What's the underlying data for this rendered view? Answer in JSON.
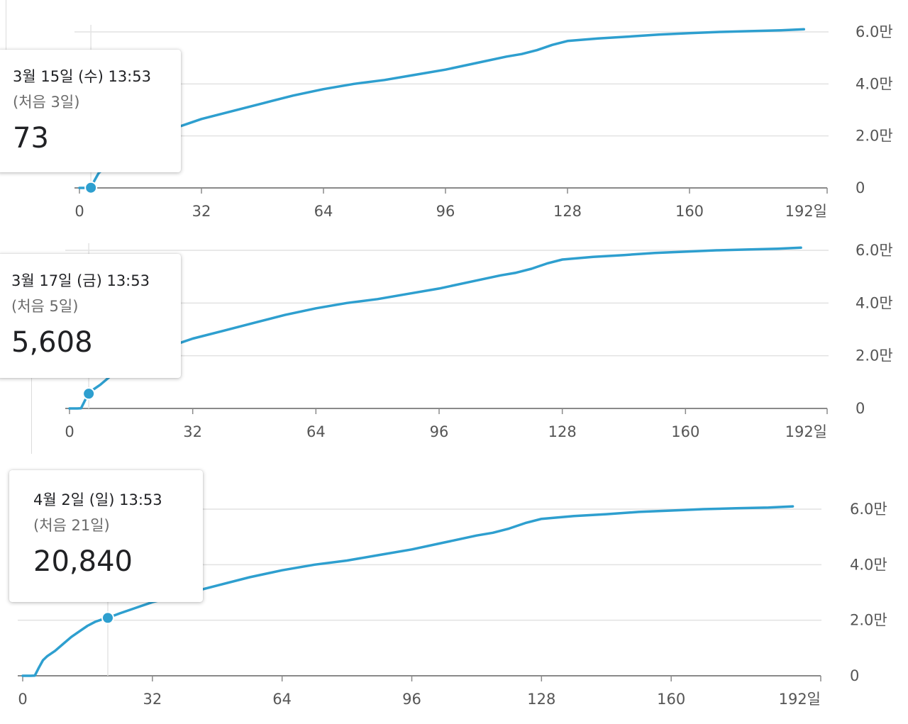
{
  "chart_data": [
    {
      "type": "line",
      "x_unit": "일",
      "x_ticks": [
        "0",
        "32",
        "64",
        "96",
        "128",
        "160",
        "192일"
      ],
      "y_ticks": [
        "0",
        "2.0만",
        "4.0만",
        "6.0만"
      ],
      "xlim": [
        0,
        192
      ],
      "ylim": [
        0,
        60000
      ],
      "grid": true,
      "color": "#2e9fcf",
      "x": [
        0,
        1,
        2,
        3,
        4,
        5,
        6,
        8,
        10,
        12,
        14,
        16,
        18,
        20,
        21,
        24,
        28,
        32,
        40,
        48,
        56,
        64,
        72,
        80,
        88,
        96,
        104,
        112,
        116,
        120,
        124,
        128,
        136,
        144,
        152,
        160,
        168,
        176,
        184,
        190
      ],
      "values": [
        0,
        0,
        0,
        73,
        3000,
        5608,
        7000,
        9000,
        11500,
        14000,
        16000,
        18000,
        19500,
        20500,
        20840,
        22500,
        24500,
        26500,
        29500,
        32500,
        35500,
        38000,
        40000,
        41500,
        43500,
        45500,
        48000,
        50500,
        51500,
        53000,
        55000,
        56500,
        57500,
        58200,
        59000,
        59500,
        60000,
        60300,
        60600,
        61000
      ],
      "tooltip": {
        "date": "3월 15일 (수) 13:53",
        "sub": "(처음 3일)",
        "value": "73"
      },
      "highlight": {
        "x": 3,
        "y": 73
      }
    },
    {
      "type": "line",
      "x_unit": "일",
      "x_ticks": [
        "0",
        "32",
        "64",
        "96",
        "128",
        "160",
        "192일"
      ],
      "y_ticks": [
        "0",
        "2.0만",
        "4.0만",
        "6.0만"
      ],
      "xlim": [
        0,
        192
      ],
      "ylim": [
        0,
        60000
      ],
      "grid": true,
      "color": "#2e9fcf",
      "x": [
        0,
        1,
        2,
        3,
        4,
        5,
        6,
        8,
        10,
        12,
        14,
        16,
        18,
        20,
        21,
        24,
        28,
        32,
        40,
        48,
        56,
        64,
        72,
        80,
        88,
        96,
        104,
        112,
        116,
        120,
        124,
        128,
        136,
        144,
        152,
        160,
        168,
        176,
        184,
        190
      ],
      "values": [
        0,
        0,
        0,
        73,
        3000,
        5608,
        7000,
        9000,
        11500,
        14000,
        16000,
        18000,
        19500,
        20500,
        20840,
        22500,
        24500,
        26500,
        29500,
        32500,
        35500,
        38000,
        40000,
        41500,
        43500,
        45500,
        48000,
        50500,
        51500,
        53000,
        55000,
        56500,
        57500,
        58200,
        59000,
        59500,
        60000,
        60300,
        60600,
        61000
      ],
      "tooltip": {
        "date": "3월 17일 (금) 13:53",
        "sub": "(처음 5일)",
        "value": "5,608"
      },
      "highlight": {
        "x": 5,
        "y": 5608
      }
    },
    {
      "type": "line",
      "x_unit": "일",
      "x_ticks": [
        "0",
        "32",
        "64",
        "96",
        "128",
        "160",
        "192일"
      ],
      "y_ticks": [
        "0",
        "2.0만",
        "4.0만",
        "6.0만"
      ],
      "xlim": [
        0,
        192
      ],
      "ylim": [
        0,
        60000
      ],
      "grid": true,
      "color": "#2e9fcf",
      "x": [
        0,
        1,
        2,
        3,
        4,
        5,
        6,
        8,
        10,
        12,
        14,
        16,
        18,
        20,
        21,
        24,
        28,
        32,
        40,
        48,
        56,
        64,
        72,
        80,
        88,
        96,
        104,
        112,
        116,
        120,
        124,
        128,
        136,
        144,
        152,
        160,
        168,
        176,
        184,
        190
      ],
      "values": [
        0,
        0,
        0,
        73,
        3000,
        5608,
        7000,
        9000,
        11500,
        14000,
        16000,
        18000,
        19500,
        20500,
        20840,
        22500,
        24500,
        26500,
        29500,
        32500,
        35500,
        38000,
        40000,
        41500,
        43500,
        45500,
        48000,
        50500,
        51500,
        53000,
        55000,
        56500,
        57500,
        58200,
        59000,
        59500,
        60000,
        60300,
        60600,
        61000
      ],
      "tooltip": {
        "date": "4월 2일 (일) 13:53",
        "sub": "(처음 21일)",
        "value": "20,840"
      },
      "highlight": {
        "x": 21,
        "y": 20840
      }
    }
  ]
}
